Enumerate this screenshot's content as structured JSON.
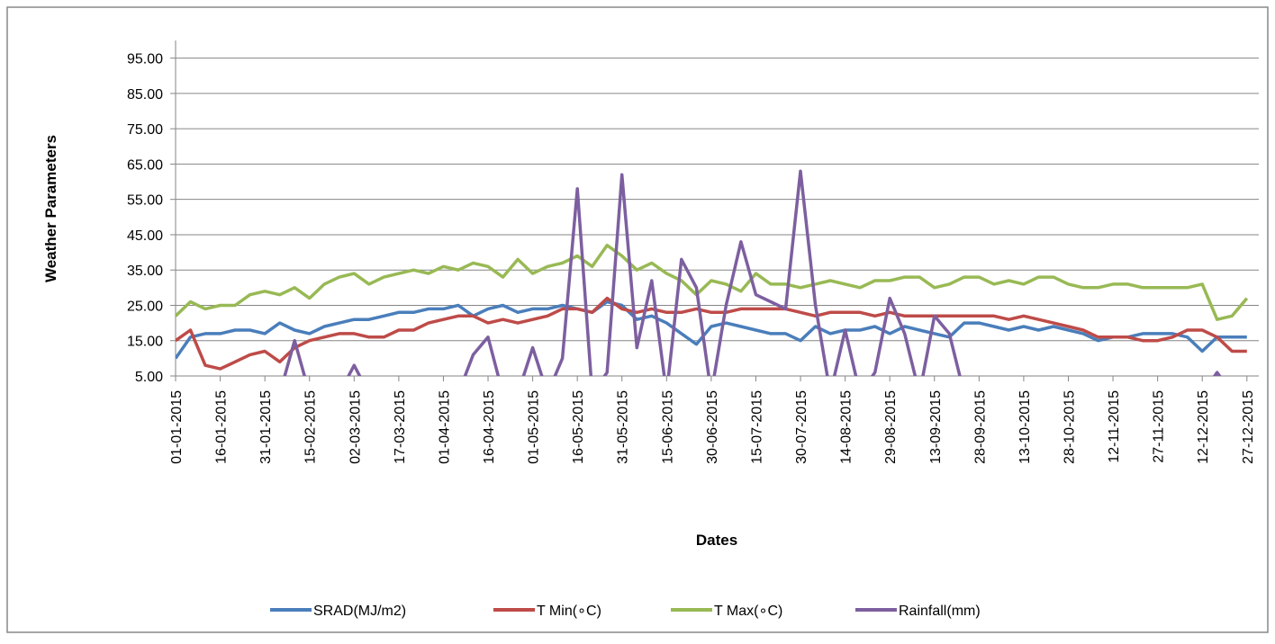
{
  "chart_data": {
    "type": "line",
    "ylabel": "Weather Parameters",
    "xlabel": "Dates",
    "categories": [
      "01-01-2015",
      null,
      null,
      "16-01-2015",
      null,
      null,
      "31-01-2015",
      null,
      null,
      "15-02-2015",
      null,
      null,
      "02-03-2015",
      null,
      null,
      "17-03-2015",
      null,
      null,
      "01-04-2015",
      null,
      null,
      "16-04-2015",
      null,
      null,
      "01-05-2015",
      null,
      null,
      "16-05-2015",
      null,
      null,
      "31-05-2015",
      null,
      null,
      "15-06-2015",
      null,
      null,
      "30-06-2015",
      null,
      null,
      "15-07-2015",
      null,
      null,
      "30-07-2015",
      null,
      null,
      "14-08-2015",
      null,
      null,
      "29-08-2015",
      null,
      null,
      "13-09-2015",
      null,
      null,
      "28-09-2015",
      null,
      null,
      "13-10-2015",
      null,
      null,
      "28-10-2015",
      null,
      null,
      "12-11-2015",
      null,
      null,
      "27-11-2015",
      null,
      null,
      "12-12-2015",
      null,
      null,
      "27-12-2015"
    ],
    "series": [
      {
        "name": "SRAD(MJ/m2)",
        "color": "#4a7ebb",
        "values": [
          10,
          16,
          17,
          17,
          18,
          18,
          17,
          20,
          18,
          17,
          19,
          20,
          21,
          21,
          22,
          23,
          23,
          24,
          24,
          25,
          22,
          24,
          25,
          23,
          24,
          24,
          25,
          24,
          23,
          26,
          25,
          21,
          22,
          20,
          17,
          14,
          19,
          20,
          19,
          18,
          17,
          17,
          15,
          19,
          17,
          18,
          18,
          19,
          17,
          19,
          18,
          17,
          16,
          20,
          20,
          19,
          18,
          19,
          18,
          19,
          18,
          17,
          15,
          16,
          16,
          17,
          17,
          17,
          16,
          12,
          16,
          16,
          16
        ]
      },
      {
        "name": "T Min(∘C)",
        "color": "#be4b48",
        "values": [
          15,
          18,
          8,
          7,
          9,
          11,
          12,
          9,
          13,
          15,
          16,
          17,
          17,
          16,
          16,
          18,
          18,
          20,
          21,
          22,
          22,
          20,
          21,
          20,
          21,
          22,
          24,
          24,
          23,
          27,
          24,
          23,
          24,
          23,
          23,
          24,
          23,
          23,
          24,
          24,
          24,
          24,
          23,
          22,
          23,
          23,
          23,
          22,
          23,
          22,
          22,
          22,
          22,
          22,
          22,
          22,
          21,
          22,
          21,
          20,
          19,
          18,
          16,
          16,
          16,
          15,
          15,
          16,
          18,
          18,
          16,
          12,
          12
        ]
      },
      {
        "name": "T Max(∘C)",
        "color": "#98b954",
        "values": [
          22,
          26,
          24,
          25,
          25,
          28,
          29,
          28,
          30,
          27,
          31,
          33,
          34,
          31,
          33,
          34,
          35,
          34,
          36,
          35,
          37,
          36,
          33,
          38,
          34,
          36,
          37,
          39,
          36,
          42,
          39,
          35,
          37,
          34,
          32,
          28,
          32,
          31,
          29,
          34,
          31,
          31,
          30,
          31,
          32,
          31,
          30,
          32,
          32,
          33,
          33,
          30,
          31,
          33,
          33,
          31,
          32,
          31,
          33,
          33,
          31,
          30,
          30,
          31,
          31,
          30,
          30,
          30,
          30,
          31,
          21,
          22,
          27
        ]
      },
      {
        "name": "Rainfall(mm)",
        "color": "#7d5fa0",
        "values": [
          0,
          0,
          0,
          0,
          0,
          0,
          0,
          0,
          15,
          0,
          0,
          0,
          8,
          0,
          0,
          0,
          0,
          0,
          0,
          0,
          11,
          16,
          0,
          0,
          13,
          0,
          10,
          58,
          0,
          6,
          62,
          13,
          32,
          0,
          38,
          30,
          0,
          25,
          43,
          28,
          26,
          24,
          63,
          25,
          0,
          18,
          0,
          6,
          27,
          17,
          0,
          22,
          17,
          0,
          0,
          0,
          0,
          0,
          0,
          0,
          0,
          0,
          0,
          0,
          0,
          0,
          0,
          0,
          0,
          0,
          6,
          0,
          0
        ]
      }
    ],
    "ylim": [
      5,
      100
    ],
    "yticks": [
      {
        "value": 5,
        "label": "5.00"
      },
      {
        "value": 15,
        "label": "15.00"
      },
      {
        "value": 25,
        "label": "25.00"
      },
      {
        "value": 35,
        "label": "35.00"
      },
      {
        "value": 45,
        "label": "45.00"
      },
      {
        "value": 55,
        "label": "55.00"
      },
      {
        "value": 65,
        "label": "65.00"
      },
      {
        "value": 75,
        "label": "75.00"
      },
      {
        "value": 85,
        "label": "85.00"
      },
      {
        "value": 95,
        "label": "95.00"
      }
    ],
    "grid": true,
    "legend": "bottom"
  }
}
